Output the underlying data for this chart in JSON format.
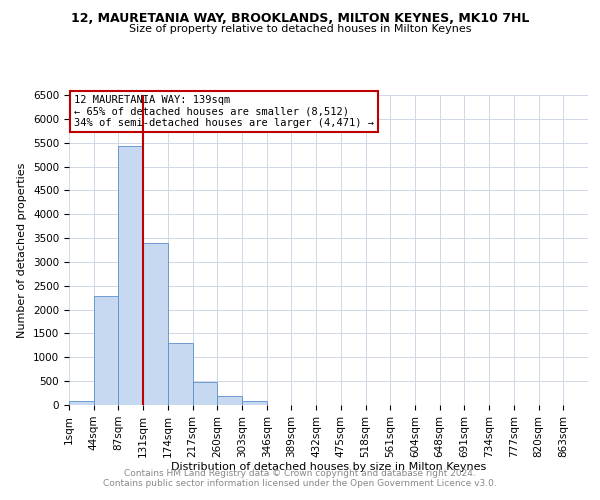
{
  "title": "12, MAURETANIA WAY, BROOKLANDS, MILTON KEYNES, MK10 7HL",
  "subtitle": "Size of property relative to detached houses in Milton Keynes",
  "xlabel": "Distribution of detached houses by size in Milton Keynes",
  "ylabel": "Number of detached properties",
  "bin_labels": [
    "1sqm",
    "44sqm",
    "87sqm",
    "131sqm",
    "174sqm",
    "217sqm",
    "260sqm",
    "303sqm",
    "346sqm",
    "389sqm",
    "432sqm",
    "475sqm",
    "518sqm",
    "561sqm",
    "604sqm",
    "648sqm",
    "691sqm",
    "734sqm",
    "777sqm",
    "820sqm",
    "863sqm"
  ],
  "bar_values": [
    75,
    2280,
    5430,
    3390,
    1310,
    490,
    185,
    90,
    0,
    0,
    0,
    0,
    0,
    0,
    0,
    0,
    0,
    0,
    0,
    0
  ],
  "bar_color": "#c6d9f0",
  "bar_edge_color": "#5a8fcb",
  "vline_x": 3.0,
  "vline_color": "#c00000",
  "annotation_text": "12 MAURETANIA WAY: 139sqm\n← 65% of detached houses are smaller (8,512)\n34% of semi-detached houses are larger (4,471) →",
  "annotation_box_color": "#ffffff",
  "annotation_box_edge": "#c00000",
  "ylim": [
    0,
    6500
  ],
  "yticks": [
    0,
    500,
    1000,
    1500,
    2000,
    2500,
    3000,
    3500,
    4000,
    4500,
    5000,
    5500,
    6000,
    6500
  ],
  "footer1": "Contains HM Land Registry data © Crown copyright and database right 2024.",
  "footer2": "Contains public sector information licensed under the Open Government Licence v3.0.",
  "background_color": "#ffffff",
  "grid_color": "#d0d8e8",
  "title_fontsize": 9,
  "subtitle_fontsize": 8,
  "ylabel_fontsize": 8,
  "xlabel_fontsize": 8,
  "tick_fontsize": 7.5,
  "footer_fontsize": 6.5,
  "footer_color": "#888888"
}
